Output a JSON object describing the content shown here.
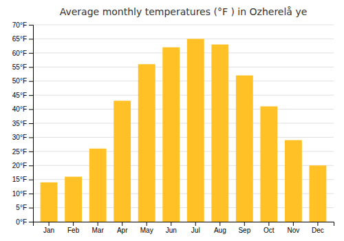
{
  "chart_data": {
    "type": "bar",
    "title": "Average monthly temperatures (°F ) in Ozherelå ye",
    "categories": [
      "Jan",
      "Feb",
      "Mar",
      "Apr",
      "May",
      "Jun",
      "Jul",
      "Aug",
      "Sep",
      "Oct",
      "Nov",
      "Dec"
    ],
    "values": [
      14,
      16,
      26,
      43,
      56,
      62,
      65,
      63,
      52,
      41,
      29,
      20
    ],
    "color": "#FFC125",
    "ylim": [
      0,
      70
    ],
    "yticks": [
      {
        "value": 0,
        "label": "0°F"
      },
      {
        "value": 5,
        "label": "5°F"
      },
      {
        "value": 10,
        "label": "10°F"
      },
      {
        "value": 15,
        "label": "15°F"
      },
      {
        "value": 20,
        "label": "20°F"
      },
      {
        "value": 25,
        "label": "25°F"
      },
      {
        "value": 30,
        "label": "30°F"
      },
      {
        "value": 35,
        "label": "35°F"
      },
      {
        "value": 40,
        "label": "40°F"
      },
      {
        "value": 45,
        "label": "45°F"
      },
      {
        "value": 50,
        "label": "50°F"
      },
      {
        "value": 55,
        "label": "55°F"
      },
      {
        "value": 60,
        "label": "60°F"
      },
      {
        "value": 65,
        "label": "65°F"
      },
      {
        "value": 70,
        "label": "70°F"
      }
    ],
    "grid": true
  }
}
